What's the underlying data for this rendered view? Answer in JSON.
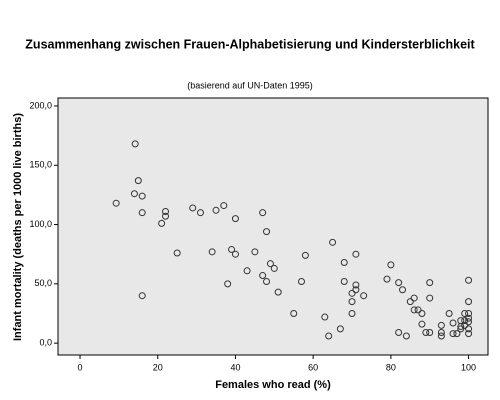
{
  "chart_data": {
    "type": "scatter",
    "title": "Zusammenhang zwischen Frauen-Alphabetisierung und Kindersterblichkeit",
    "subtitle": "(basierend auf UN-Daten 1995)",
    "x_label": "Females who read (%)",
    "y_label": "Infant mortality (deaths per 1000 live births)",
    "x": [
      14.2,
      9.3,
      14,
      15,
      16,
      16,
      16,
      21,
      22,
      22,
      25,
      29,
      31,
      34,
      35,
      37,
      38,
      39,
      40,
      40,
      43,
      45,
      47,
      47,
      48,
      48,
      49,
      50,
      51,
      55,
      57,
      58,
      63,
      64,
      65,
      67,
      68,
      68,
      70,
      70,
      70,
      71,
      71,
      71,
      73,
      79,
      80,
      82,
      82,
      83,
      84,
      85,
      86,
      86,
      87,
      88,
      88,
      89,
      90,
      90,
      90,
      93,
      93,
      93,
      95,
      96,
      96,
      97,
      98,
      98,
      99,
      99,
      99,
      100,
      100,
      100,
      100,
      100,
      100,
      100,
      98
    ],
    "values": [
      168,
      118,
      126,
      137,
      124,
      110,
      40,
      101,
      111,
      107,
      76,
      114,
      110,
      77,
      112,
      116,
      50,
      79,
      105,
      75,
      61,
      77,
      110,
      57,
      94,
      52,
      67,
      63,
      43,
      25,
      52,
      74,
      22,
      6,
      85,
      12,
      68,
      52,
      25,
      42,
      35,
      75,
      49,
      45,
      40,
      54,
      66,
      51,
      9,
      45,
      6,
      35,
      38,
      28,
      28,
      25,
      16,
      9,
      9,
      51,
      38,
      15,
      9,
      6,
      25,
      17,
      8,
      8,
      14,
      19,
      25,
      19,
      15,
      53,
      35,
      25,
      21,
      18,
      8,
      12,
      12
    ],
    "color": "#333333",
    "background": "#e8e8e8",
    "xlim": [
      -5.67,
      105
    ],
    "ylim": [
      -10,
      206.7
    ],
    "xticks": [
      0,
      20,
      40,
      60,
      80,
      100
    ],
    "yticks": [
      {
        "value": 0,
        "label": "0,0"
      },
      {
        "value": 50,
        "label": "50,0"
      },
      {
        "value": 100,
        "label": "100,0"
      },
      {
        "value": 150,
        "label": "150,0"
      },
      {
        "value": 200,
        "label": "200,0"
      }
    ]
  }
}
